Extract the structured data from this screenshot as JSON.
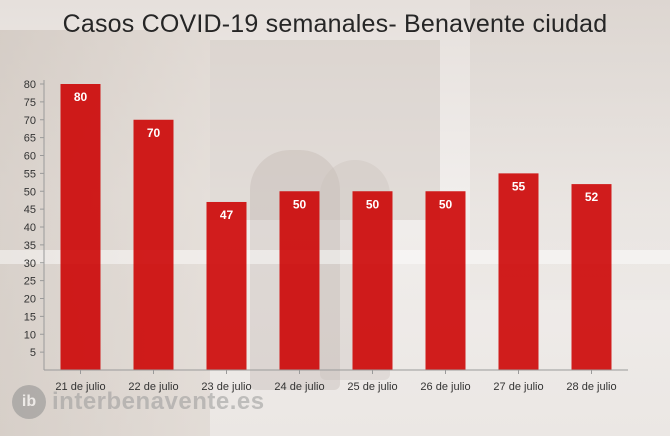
{
  "chart_data": {
    "type": "bar",
    "title": "Casos COVID-19 semanales- Benavente ciudad",
    "categories": [
      "21 de julio",
      "22 de julio",
      "23 de julio",
      "24 de julio",
      "25 de julio",
      "26 de julio",
      "27 de julio",
      "28 de julio"
    ],
    "values": [
      80,
      70,
      47,
      50,
      50,
      50,
      55,
      52
    ],
    "xlabel": "",
    "ylabel": "",
    "ylim": [
      0,
      80
    ],
    "yticks": [
      5,
      10,
      15,
      20,
      25,
      30,
      35,
      40,
      45,
      50,
      55,
      60,
      65,
      70,
      75,
      80
    ],
    "grid": false,
    "legend": "none",
    "bar_color": "#cc0000",
    "data_label_color": "#ffffff"
  },
  "watermark": {
    "text": "interbenavente.es",
    "badge": "ib"
  }
}
